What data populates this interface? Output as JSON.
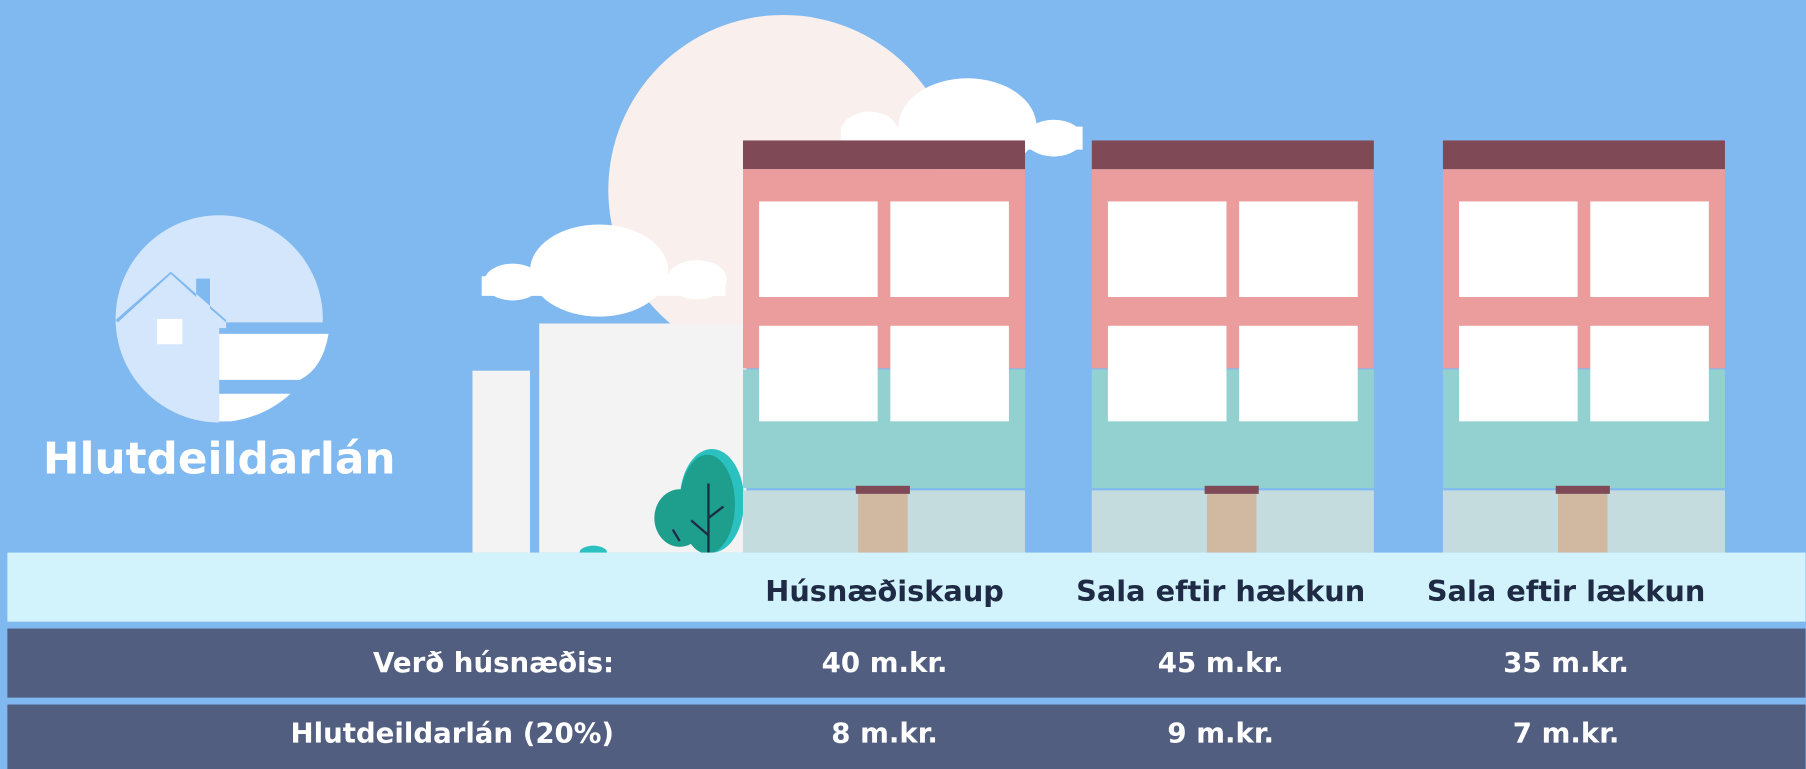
{
  "logo": {
    "title": "Hlutdeildarlán"
  },
  "table": {
    "columns": [
      "Húsnæðiskaup",
      "Sala eftir hækkun",
      "Sala eftir lækkun"
    ],
    "rows": [
      [
        "Verð húsnæðis:",
        "40 m.kr.",
        "45 m.kr.",
        "35 m.kr."
      ],
      [
        "Hlutdeildarlán (20%)",
        "8 m.kr.",
        "9 m.kr.",
        "7 m.kr."
      ]
    ]
  }
}
